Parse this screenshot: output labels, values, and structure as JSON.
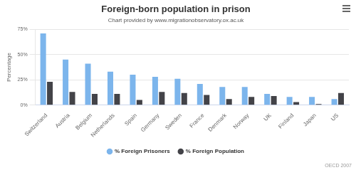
{
  "chart_data": {
    "type": "bar",
    "title": "Foreign-born population in prison",
    "subtitle": "Chart provided by www.migrationobservatory.ox.ac.uk",
    "y_label": "Percentage",
    "source": "OECD 2007",
    "categories": [
      "Switzerland",
      "Austria",
      "Belgium",
      "Netherlands",
      "Spain",
      "Germany",
      "Sweden",
      "France",
      "Denmark",
      "Norway",
      "UK",
      "Finland",
      "Japan",
      "US"
    ],
    "series": [
      {
        "name": "% Foreign Prisoners",
        "color": "#7cb5ec",
        "values": [
          71,
          45,
          41,
          33,
          30,
          28,
          26,
          21,
          18,
          18,
          11,
          8,
          8,
          6
        ]
      },
      {
        "name": "% Foreign Population",
        "color": "#434348",
        "values": [
          23,
          13,
          11,
          11,
          5,
          13,
          12,
          10,
          6,
          8,
          9,
          3,
          1,
          12
        ]
      }
    ],
    "ylim": [
      0,
      75
    ],
    "yticks": [
      {
        "value": 0,
        "label": "0%"
      },
      {
        "value": 25,
        "label": "25%"
      },
      {
        "value": 50,
        "label": "50%"
      },
      {
        "value": 75,
        "label": "75%"
      }
    ],
    "grid": true,
    "legend": "bottom"
  }
}
